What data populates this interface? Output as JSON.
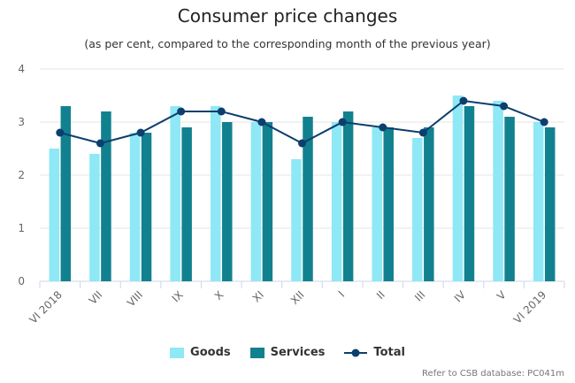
{
  "chart_data": {
    "type": "bar",
    "title": "Consumer price changes",
    "subtitle": "(as per cent, compared to the corresponding month of the previous year)",
    "categories": [
      "VI 2018",
      "VII",
      "VIII",
      "IX",
      "X",
      "XI",
      "XII",
      "I",
      "II",
      "III",
      "IV",
      "V",
      "VI 2019"
    ],
    "series": [
      {
        "name": "Goods",
        "type": "bar",
        "color": "#8ee8f5",
        "values": [
          2.5,
          2.4,
          2.8,
          3.3,
          3.3,
          3.0,
          2.3,
          3.0,
          2.9,
          2.7,
          3.5,
          3.4,
          3.0
        ]
      },
      {
        "name": "Services",
        "type": "bar",
        "color": "#12818f",
        "values": [
          3.3,
          3.2,
          2.8,
          2.9,
          3.0,
          3.0,
          3.1,
          3.2,
          2.9,
          2.9,
          3.3,
          3.1,
          2.9
        ]
      },
      {
        "name": "Total",
        "type": "line",
        "color": "#0c3e6e",
        "values": [
          2.8,
          2.6,
          2.8,
          3.2,
          3.2,
          3.0,
          2.6,
          3.0,
          2.9,
          2.8,
          3.4,
          3.3,
          3.0
        ]
      }
    ],
    "ylim": [
      0,
      4
    ],
    "yticks": [
      "0",
      "1",
      "2",
      "3",
      "4"
    ],
    "grid": true,
    "legend_position": "bottom"
  },
  "credit": "Refer to CSB database: PC041m"
}
